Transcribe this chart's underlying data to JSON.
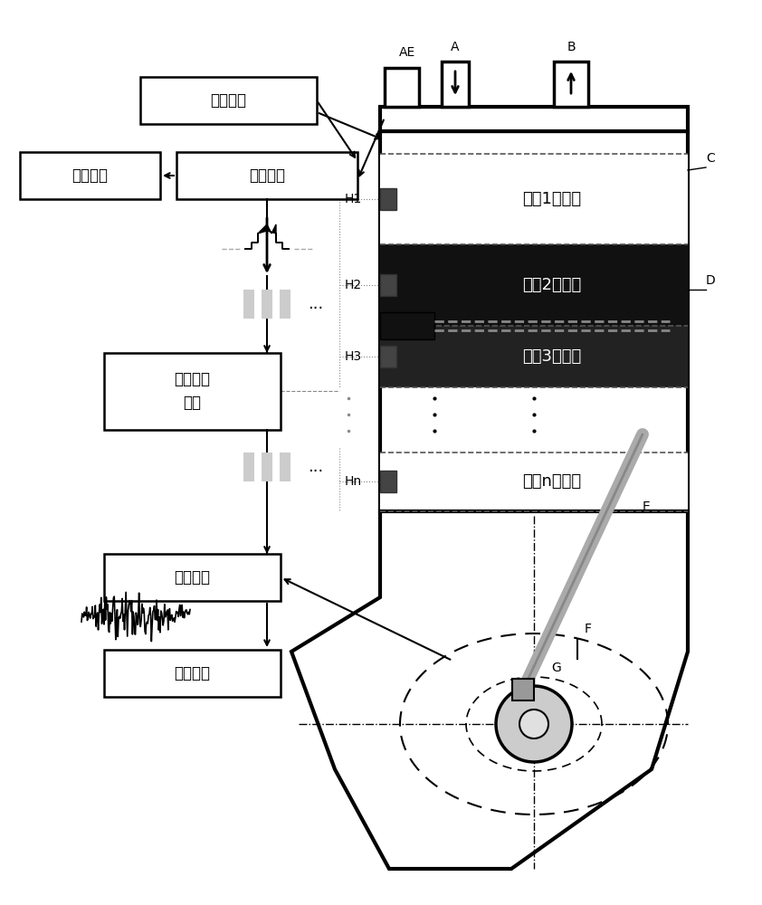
{
  "bg_color": "#ffffff",
  "labels": {
    "sheng_fa_she_yuan": "声发射源",
    "xin_hao_cai_ji_top": "信号采集",
    "xin_hao_chu_li_top": "信号处理",
    "huo_er_cai_ji_mo_kuai": "霍尔采集\n模块",
    "xin_hao_cai_ji_bot": "信号采集",
    "xin_hao_chu_li_bot": "信号处理",
    "wei_zhi_1": "位置1采集域",
    "wei_zhi_2": "位置2采集域",
    "wei_zhi_3": "位置3采集域",
    "wei_zhi_n": "位置n采集域",
    "AE": "AE",
    "A": "A",
    "B": "B",
    "C": "C",
    "D": "D",
    "E": "E",
    "F": "F",
    "G": "G",
    "H1": "H1",
    "H2": "H2",
    "H3": "H3",
    "Hn": "Hn"
  },
  "pulse_color": "#aaaaaa"
}
